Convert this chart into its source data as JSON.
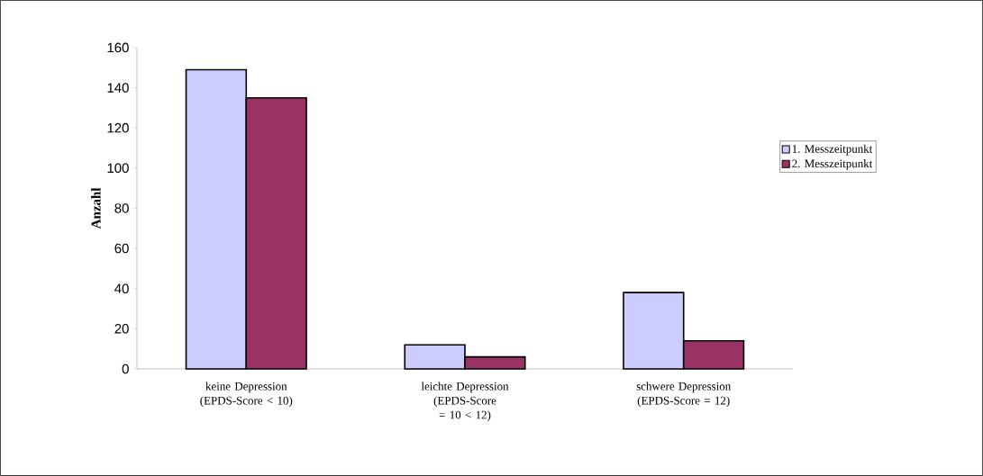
{
  "chart_data": {
    "type": "bar",
    "ylabel": "Anzahl",
    "categories": [
      "keine Depression (EPDS-Score < 10)",
      "leichte Depression (EPDS-Score = 10 < 12)",
      "schwere Depression (EPDS-Score = 12)"
    ],
    "series": [
      {
        "name": "1. Messzeitpunkt",
        "color": "#ccccff",
        "values": [
          149,
          12,
          38
        ]
      },
      {
        "name": "2. Messzeitpunkt",
        "color": "#993366",
        "values": [
          135,
          6,
          14
        ]
      }
    ],
    "ylim": [
      0,
      160
    ],
    "yticks": [
      0,
      20,
      40,
      60,
      80,
      100,
      120,
      140,
      160
    ],
    "legend": "right"
  }
}
